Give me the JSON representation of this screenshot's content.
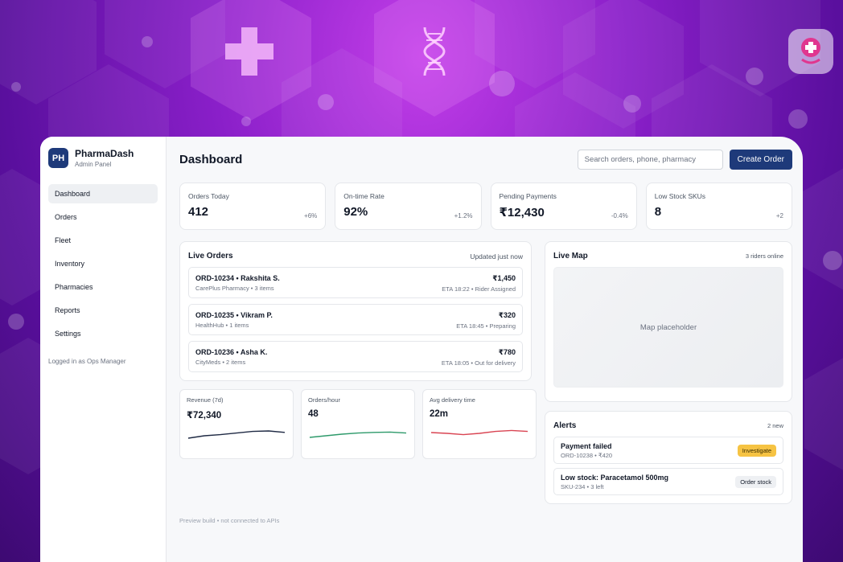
{
  "app": {
    "brand_initials": "PH",
    "brand_name": "PharmaDash",
    "brand_sub": "Admin Panel",
    "logged_in": "Logged in as Ops Manager"
  },
  "sidebar": {
    "items": [
      {
        "label": "Dashboard",
        "active": true
      },
      {
        "label": "Orders"
      },
      {
        "label": "Fleet"
      },
      {
        "label": "Inventory"
      },
      {
        "label": "Pharmacies"
      },
      {
        "label": "Reports"
      },
      {
        "label": "Settings"
      }
    ]
  },
  "header": {
    "title": "Dashboard",
    "search_placeholder": "Search orders, phone, pharmacy",
    "create_label": "Create Order"
  },
  "kpis": [
    {
      "label": "Orders Today",
      "value": "412",
      "delta": "+6%"
    },
    {
      "label": "On-time Rate",
      "value": "92%",
      "delta": "+1.2%"
    },
    {
      "label": "Pending Payments",
      "value": "₹12,430",
      "delta": "-0.4%"
    },
    {
      "label": "Low Stock SKUs",
      "value": "8",
      "delta": "+2"
    }
  ],
  "live_orders": {
    "title": "Live Orders",
    "meta": "Updated just now",
    "orders": [
      {
        "title": "ORD-10234 • Rakshita S.",
        "sub": "CarePlus Pharmacy • 3 items",
        "amount": "₹1,450",
        "status": "ETA 18:22 • Rider Assigned"
      },
      {
        "title": "ORD-10235 • Vikram P.",
        "sub": "HealthHub • 1 items",
        "amount": "₹320",
        "status": "ETA 18:45 • Preparing"
      },
      {
        "title": "ORD-10236 • Asha K.",
        "sub": "CityMeds • 2 items",
        "amount": "₹780",
        "status": "ETA 18:05 • Out for delivery"
      }
    ]
  },
  "metrics": [
    {
      "label": "Revenue (7d)",
      "value": "₹72,340",
      "color": "#1f2a44",
      "trend": [
        0.3,
        0.45,
        0.52,
        0.62,
        0.72,
        0.75,
        0.66
      ]
    },
    {
      "label": "Orders/hour",
      "value": "48",
      "color": "#2e9a6b",
      "trend": [
        0.25,
        0.35,
        0.45,
        0.52,
        0.56,
        0.58,
        0.52
      ]
    },
    {
      "label": "Avg delivery time",
      "value": "22m",
      "color": "#d94452",
      "trend": [
        0.55,
        0.5,
        0.42,
        0.5,
        0.62,
        0.68,
        0.62
      ]
    }
  ],
  "footnote": "Preview build • not connected to APIs",
  "live_map": {
    "title": "Live Map",
    "meta": "3 riders online",
    "placeholder": "Map placeholder"
  },
  "alerts": {
    "title": "Alerts",
    "meta": "2 new",
    "items": [
      {
        "title": "Payment failed",
        "sub": "ORD-10238 • ₹420",
        "action": "Investigate",
        "kind": "warn"
      },
      {
        "title": "Low stock: Paracetamol 500mg",
        "sub": "SKU-234 • 3 left",
        "action": "Order stock",
        "kind": "neutral"
      }
    ]
  }
}
